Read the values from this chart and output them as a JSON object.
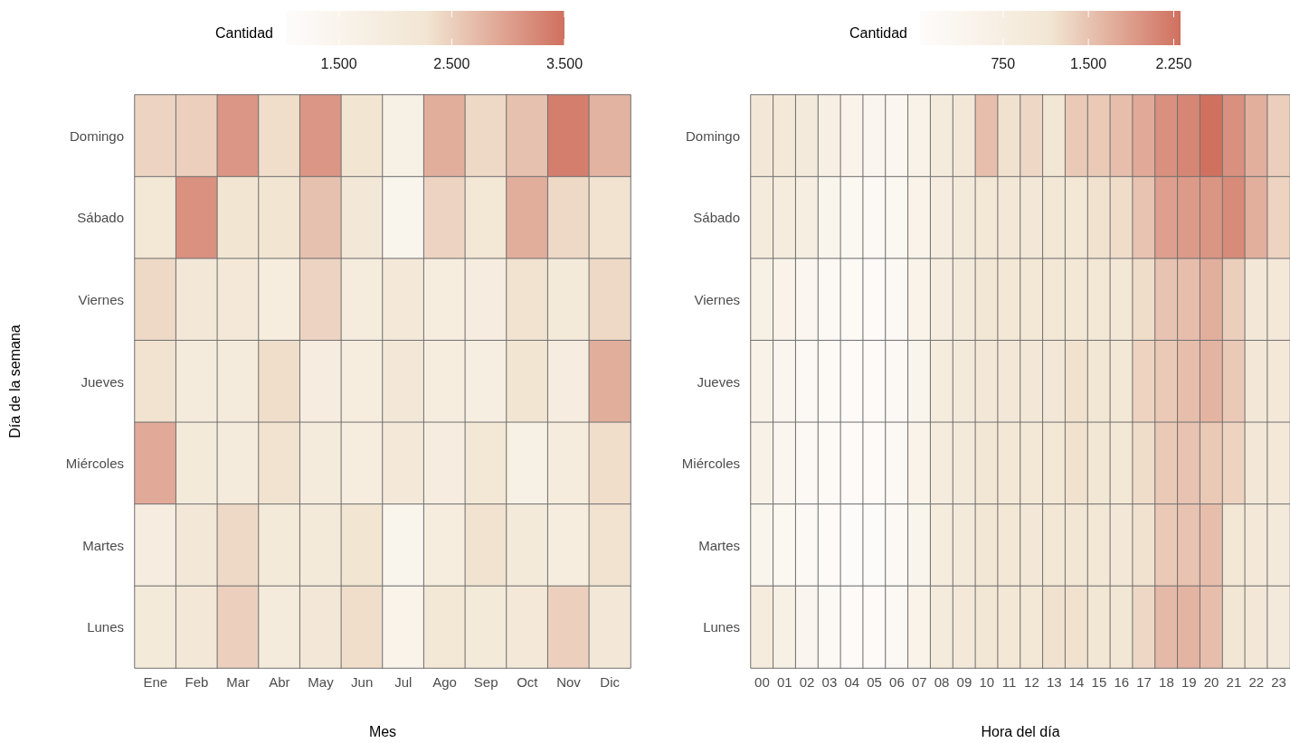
{
  "chart_data": [
    {
      "type": "heatmap",
      "xlabel": "Mes",
      "ylabel": "Día de la semana",
      "clabel": "Cantidad",
      "categories": [
        "Ene",
        "Feb",
        "Mar",
        "Abr",
        "May",
        "Jun",
        "Jul",
        "Ago",
        "Sep",
        "Oct",
        "Nov",
        "Dic"
      ],
      "y_categories": [
        "Domingo",
        "Sábado",
        "Viernes",
        "Jueves",
        "Miércoles",
        "Martes",
        "Lunes"
      ],
      "cells": [
        [
          2450,
          2500,
          3100,
          2350,
          3100,
          2250,
          1700,
          2850,
          2400,
          2650,
          3350,
          2800
        ],
        [
          2200,
          3150,
          2250,
          2250,
          2650,
          2150,
          1500,
          2450,
          2200,
          2850,
          2400,
          2300
        ],
        [
          2400,
          2150,
          2100,
          1900,
          2450,
          1950,
          2100,
          1900,
          1850,
          2300,
          2050,
          2400
        ],
        [
          2300,
          2000,
          2000,
          2350,
          1850,
          1900,
          2150,
          1900,
          1800,
          2250,
          1850,
          2850
        ],
        [
          2900,
          2050,
          2000,
          2300,
          2000,
          1900,
          2100,
          1850,
          2200,
          1700,
          1950,
          2350
        ],
        [
          1850,
          2150,
          2400,
          2050,
          2050,
          2250,
          1500,
          1900,
          2300,
          2050,
          1900,
          2300
        ],
        [
          2050,
          2150,
          2500,
          2000,
          2150,
          2350,
          1550,
          2200,
          2050,
          2100,
          2500,
          2150
        ]
      ],
      "clim": [
        1030,
        3500
      ],
      "cticks": [
        {
          "value": 1500,
          "label": "1.500"
        },
        {
          "value": 2500,
          "label": "2.500"
        },
        {
          "value": 3500,
          "label": "3.500"
        }
      ]
    },
    {
      "type": "heatmap",
      "xlabel": "Hora del día",
      "clabel": "Cantidad",
      "categories": [
        "00",
        "01",
        "02",
        "03",
        "04",
        "05",
        "06",
        "07",
        "08",
        "09",
        "10",
        "11",
        "12",
        "13",
        "14",
        "15",
        "16",
        "17",
        "18",
        "19",
        "20",
        "21",
        "22",
        "23"
      ],
      "y_categories": [
        "Domingo",
        "Sábado",
        "Viernes",
        "Jueves",
        "Miércoles",
        "Martes",
        "Lunes"
      ],
      "cells": [
        [
          1050,
          1000,
          950,
          700,
          500,
          400,
          350,
          550,
          900,
          1050,
          1550,
          1200,
          1300,
          1150,
          1450,
          1450,
          1550,
          1750,
          2000,
          2100,
          2300,
          2000,
          1700,
          1400
        ],
        [
          900,
          850,
          750,
          450,
          300,
          250,
          300,
          500,
          800,
          950,
          1100,
          1050,
          1050,
          1100,
          1100,
          1200,
          1250,
          1500,
          1850,
          1900,
          1950,
          2050,
          1700,
          1350
        ],
        [
          650,
          500,
          350,
          200,
          150,
          120,
          250,
          500,
          800,
          950,
          1150,
          1100,
          1100,
          1100,
          1100,
          1100,
          1100,
          1250,
          1500,
          1550,
          1700,
          1400,
          1050,
          1000
        ],
        [
          550,
          400,
          250,
          150,
          100,
          100,
          250,
          450,
          850,
          950,
          1050,
          1050,
          1050,
          1050,
          1200,
          1150,
          1100,
          1350,
          1450,
          1550,
          1650,
          1450,
          1050,
          1000
        ],
        [
          600,
          400,
          250,
          150,
          100,
          100,
          250,
          500,
          850,
          950,
          1150,
          1100,
          1100,
          1100,
          1200,
          1150,
          1100,
          1250,
          1450,
          1500,
          1450,
          1350,
          1050,
          1000
        ],
        [
          450,
          300,
          200,
          100,
          80,
          80,
          200,
          450,
          850,
          950,
          1150,
          1100,
          1050,
          1100,
          1150,
          1100,
          1050,
          1200,
          1450,
          1500,
          1550,
          1100,
          1000,
          950
        ],
        [
          850,
          650,
          400,
          200,
          120,
          120,
          250,
          500,
          900,
          1000,
          1150,
          1100,
          1100,
          1200,
          1200,
          1150,
          1150,
          1300,
          1600,
          1650,
          1550,
          1150,
          1050,
          950
        ]
      ],
      "clim": [
        20,
        2310
      ],
      "cticks": [
        750,
        {
          "value": 1500,
          "label": "1.500"
        },
        {
          "value": 2250,
          "label": "2.250"
        }
      ]
    }
  ]
}
